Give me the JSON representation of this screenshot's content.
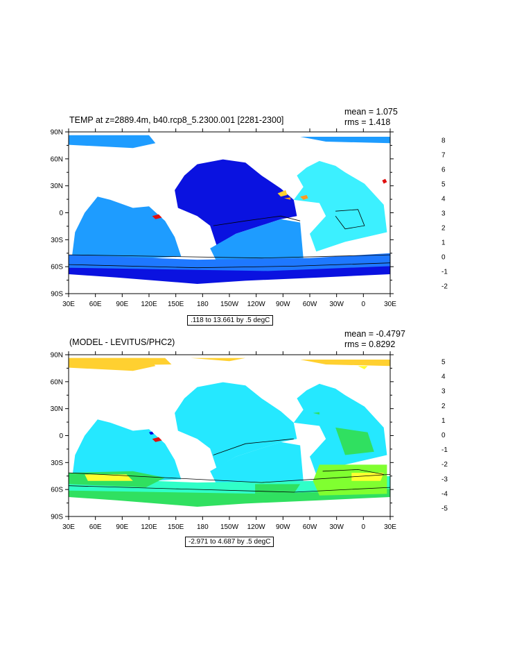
{
  "panels": [
    {
      "title": "TEMP at z=2889.4m, b40.rcp8_5.2300.001 [2281-2300]",
      "mean": "mean = 1.075",
      "rms": "rms = 1.418",
      "info": ".118 to 13.661 by .5 degC",
      "lat_labels": [
        "90N",
        "60N",
        "30N",
        "0",
        "30S",
        "60S",
        "90S"
      ],
      "lon_labels": [
        "30E",
        "60E",
        "90E",
        "120E",
        "150E",
        "180",
        "150W",
        "120W",
        "90W",
        "60W",
        "30W",
        "0",
        "30E"
      ],
      "colorbar_labels": [
        "8",
        "7",
        "6",
        "5",
        "4",
        "3",
        "2",
        "1",
        "0",
        "-1",
        "-2"
      ],
      "colorbar_colors": [
        "#b40000",
        "#e02020",
        "#ff6000",
        "#ff9a20",
        "#ffd030",
        "#ffff00",
        "#80ff30",
        "#30e060",
        "#40ffd0",
        "#00e0ff",
        "#00b0ff",
        "#1e78ff",
        "#0000e0",
        "#8000c0",
        "#ff00ff",
        "#c8c8c8",
        "#6e6e6e"
      ],
      "colors": {
        "pacific": "#0a12e0",
        "indian": "#1e9cff",
        "atlantic": "#3cf0ff",
        "southern": "#1e78ff",
        "deep_south": "#0a12e0",
        "arctic": "#1e9cff",
        "red_patch": "#e01010",
        "yellow_patch": "#ffd030",
        "orange_patch": "#ff9a20"
      }
    },
    {
      "title": "(MODEL - LEVITUS/PHC2)",
      "mean": "mean = -0.4797",
      "rms": "rms = 0.8292",
      "info": "-2.971 to 4.687 by .5 degC",
      "lat_labels": [
        "90N",
        "60N",
        "30N",
        "0",
        "30S",
        "60S",
        "90S"
      ],
      "lon_labels": [
        "30E",
        "60E",
        "90E",
        "120E",
        "150E",
        "180",
        "150W",
        "120W",
        "90W",
        "60W",
        "30W",
        "0",
        "30E"
      ],
      "colorbar_labels": [
        "5",
        "4",
        "3",
        "2",
        "1",
        "0",
        "-1",
        "-2",
        "-3",
        "-4",
        "-5"
      ],
      "colorbar_colors": [
        "#b40000",
        "#e02020",
        "#ff6000",
        "#ff9a20",
        "#ffd030",
        "#ffff00",
        "#80ff30",
        "#30e060",
        "#40ffd0",
        "#00e0ff",
        "#00b0ff",
        "#1e78ff",
        "#0000e0",
        "#8000c0",
        "#ff00ff",
        "#c8c8c8",
        "#6e6e6e"
      ],
      "colors": {
        "pacific": "#25e8ff",
        "indian": "#25e8ff",
        "atlantic": "#25e8ff",
        "southern": "#30ffc8",
        "deep_south": "#30e060",
        "arctic": "#ffd030",
        "green_patch": "#30e060",
        "lime_patch": "#80ff30",
        "yellow_patch": "#ffff30",
        "red_patch": "#e01010",
        "blue_patch": "#0000e0"
      }
    }
  ]
}
